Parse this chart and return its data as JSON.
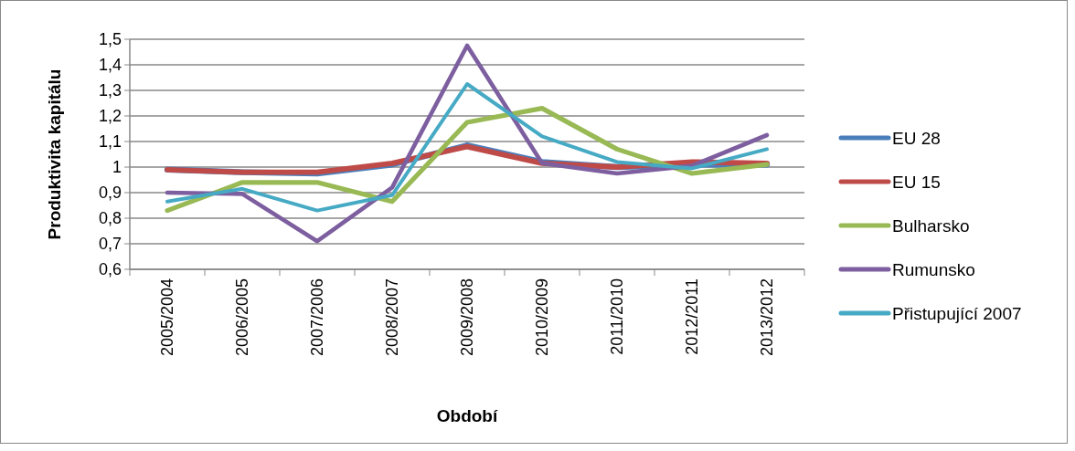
{
  "chart_data": {
    "type": "line",
    "xlabel": "Období",
    "ylabel": "Produktivita kapitálu",
    "categories": [
      "2005/2004",
      "2006/2005",
      "2007/2006",
      "2008/2007",
      "2009/2008",
      "2010/2009",
      "2011/2010",
      "2012/2011",
      "2013/2012"
    ],
    "series": [
      {
        "name": "EU 28",
        "color": "#4a7ebb",
        "values": [
          0.99,
          0.98,
          0.975,
          1.01,
          1.085,
          1.02,
          1.0,
          1.01,
          1.01
        ]
      },
      {
        "name": "EU 15",
        "color": "#be4b48",
        "values": [
          0.99,
          0.98,
          0.98,
          1.015,
          1.08,
          1.015,
          1.0,
          1.02,
          1.015
        ]
      },
      {
        "name": "Bulharsko",
        "color": "#98b954",
        "values": [
          0.83,
          0.94,
          0.94,
          0.865,
          1.175,
          1.23,
          1.07,
          0.975,
          1.01
        ]
      },
      {
        "name": "Rumunsko",
        "color": "#7d5fa0",
        "values": [
          0.9,
          0.895,
          0.71,
          0.92,
          1.475,
          1.015,
          0.975,
          1.005,
          1.125
        ]
      },
      {
        "name": "Přistupující 2007",
        "color": "#46aac5",
        "values": [
          0.865,
          0.915,
          0.83,
          0.89,
          1.325,
          1.12,
          1.02,
          0.995,
          1.07
        ]
      }
    ],
    "ylim": [
      0.6,
      1.5
    ],
    "yticks": [
      {
        "value": 0.6,
        "label": "0,6"
      },
      {
        "value": 0.7,
        "label": "0,7"
      },
      {
        "value": 0.8,
        "label": "0,8"
      },
      {
        "value": 0.9,
        "label": "0,9"
      },
      1,
      {
        "value": 1.1,
        "label": "1,1"
      },
      {
        "value": 1.2,
        "label": "1,2"
      },
      {
        "value": 1.3,
        "label": "1,3"
      },
      {
        "value": 1.4,
        "label": "1,4"
      },
      {
        "value": 1.5,
        "label": "1,5"
      }
    ],
    "grid": "y",
    "legend": "right",
    "marker": "none",
    "line_style": "solid"
  }
}
